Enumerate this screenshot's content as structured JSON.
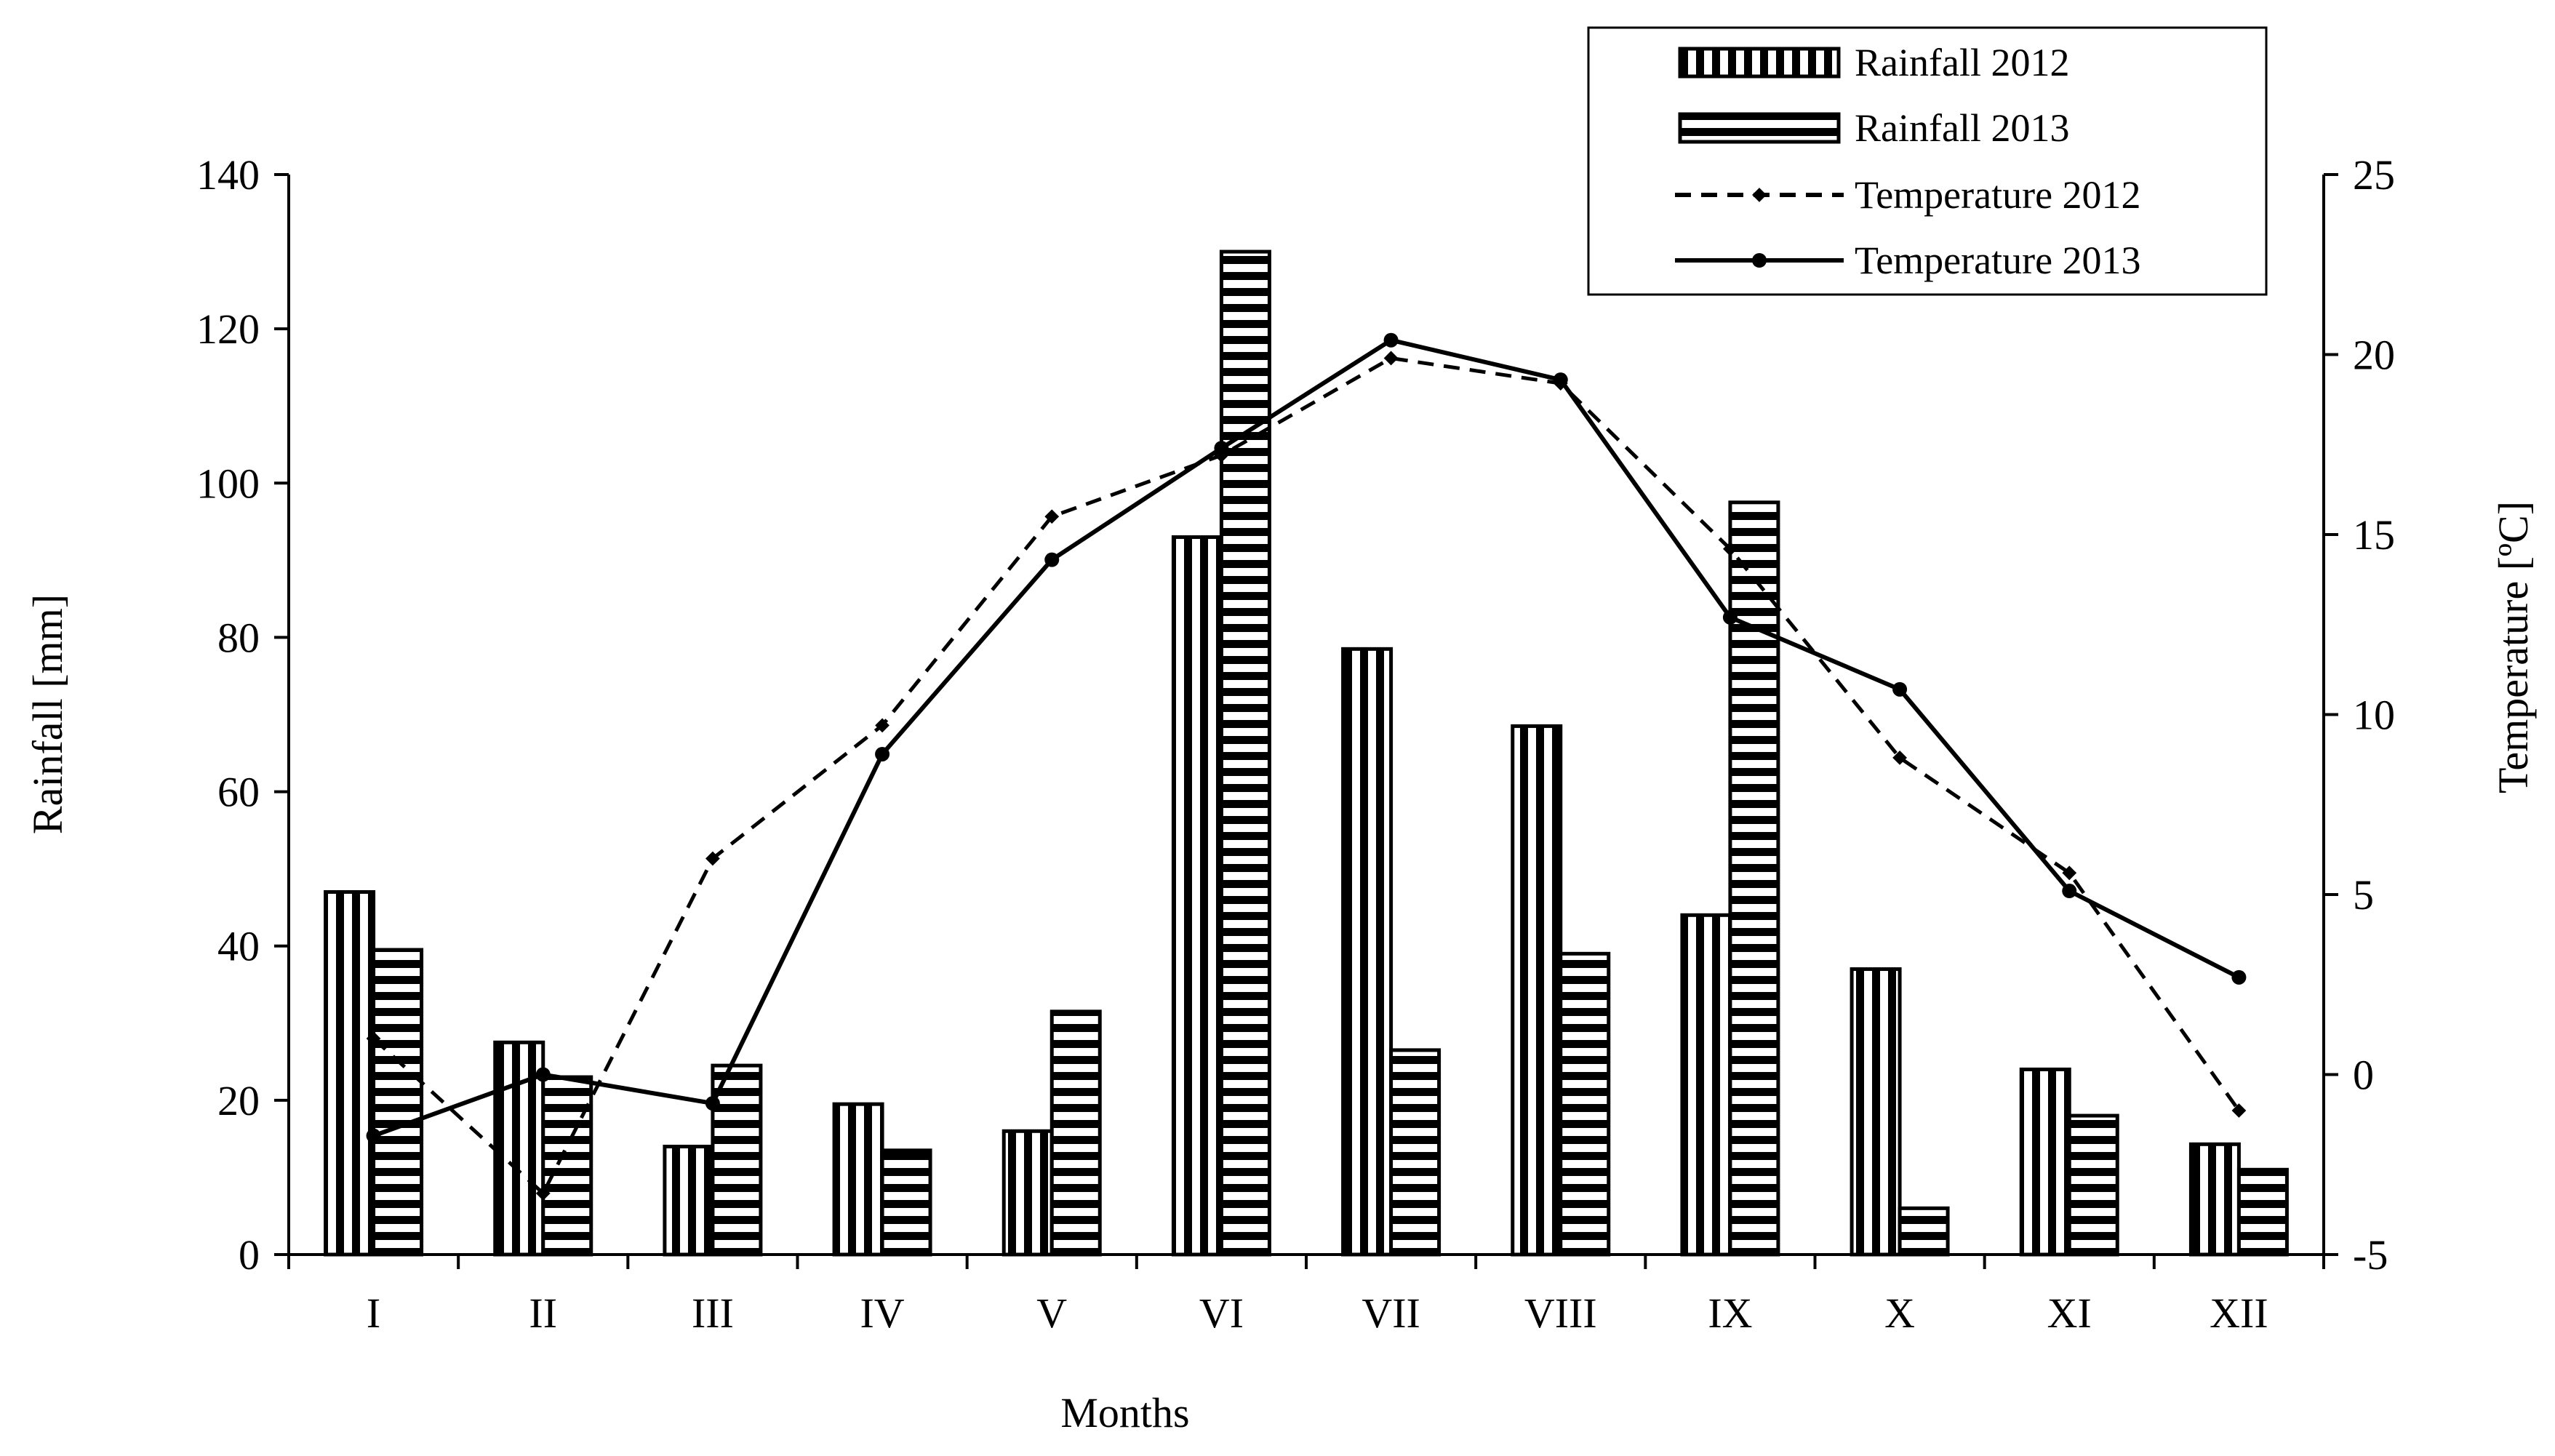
{
  "chart_data": {
    "type": "bar+line",
    "xlabel": "Months",
    "ylabel_left": "Rainfall [mm]",
    "ylabel_right": "Temperature [ºC]",
    "ylim_left": [
      0,
      140
    ],
    "yticks_left": [
      "0",
      "20",
      "40",
      "60",
      "80",
      "100",
      "120",
      "140"
    ],
    "ylim_right": [
      -5,
      25
    ],
    "yticks_right": [
      "-5",
      "0",
      "5",
      "10",
      "15",
      "20",
      "25"
    ],
    "categories": [
      "I",
      "II",
      "III",
      "IV",
      "V",
      "VI",
      "VII",
      "VIII",
      "IX",
      "X",
      "XI",
      "XII"
    ],
    "bars": [
      {
        "name": "Rainfall 2012",
        "pattern": "vertical-stripes",
        "axis": "left",
        "values": [
          47,
          27.5,
          14,
          19.5,
          16,
          93,
          78.5,
          68.5,
          44,
          37,
          24,
          14.3
        ]
      },
      {
        "name": "Rainfall 2013",
        "pattern": "horizontal-stripes",
        "axis": "left",
        "values": [
          39.5,
          23,
          24.5,
          13.5,
          31.5,
          130,
          26.5,
          39,
          97.5,
          6,
          18,
          11
        ]
      }
    ],
    "lines": [
      {
        "name": "Temperature 2012",
        "style": "dashed",
        "marker": "diamond",
        "axis": "right",
        "values": [
          1,
          -3.3,
          6,
          9.7,
          15.5,
          17.2,
          19.9,
          19.2,
          14.6,
          8.8,
          5.6,
          -1
        ]
      },
      {
        "name": "Temperature 2013",
        "style": "solid",
        "marker": "circle",
        "axis": "right",
        "values": [
          -1.7,
          0,
          -0.8,
          8.9,
          14.3,
          17.4,
          20.4,
          19.3,
          12.7,
          10.7,
          5.1,
          2.7
        ]
      }
    ],
    "legend": {
      "position": "top-right",
      "entries": [
        "Rainfall 2012",
        "Rainfall 2013",
        "Temperature 2012",
        "Temperature 2013"
      ]
    },
    "grid": false
  }
}
